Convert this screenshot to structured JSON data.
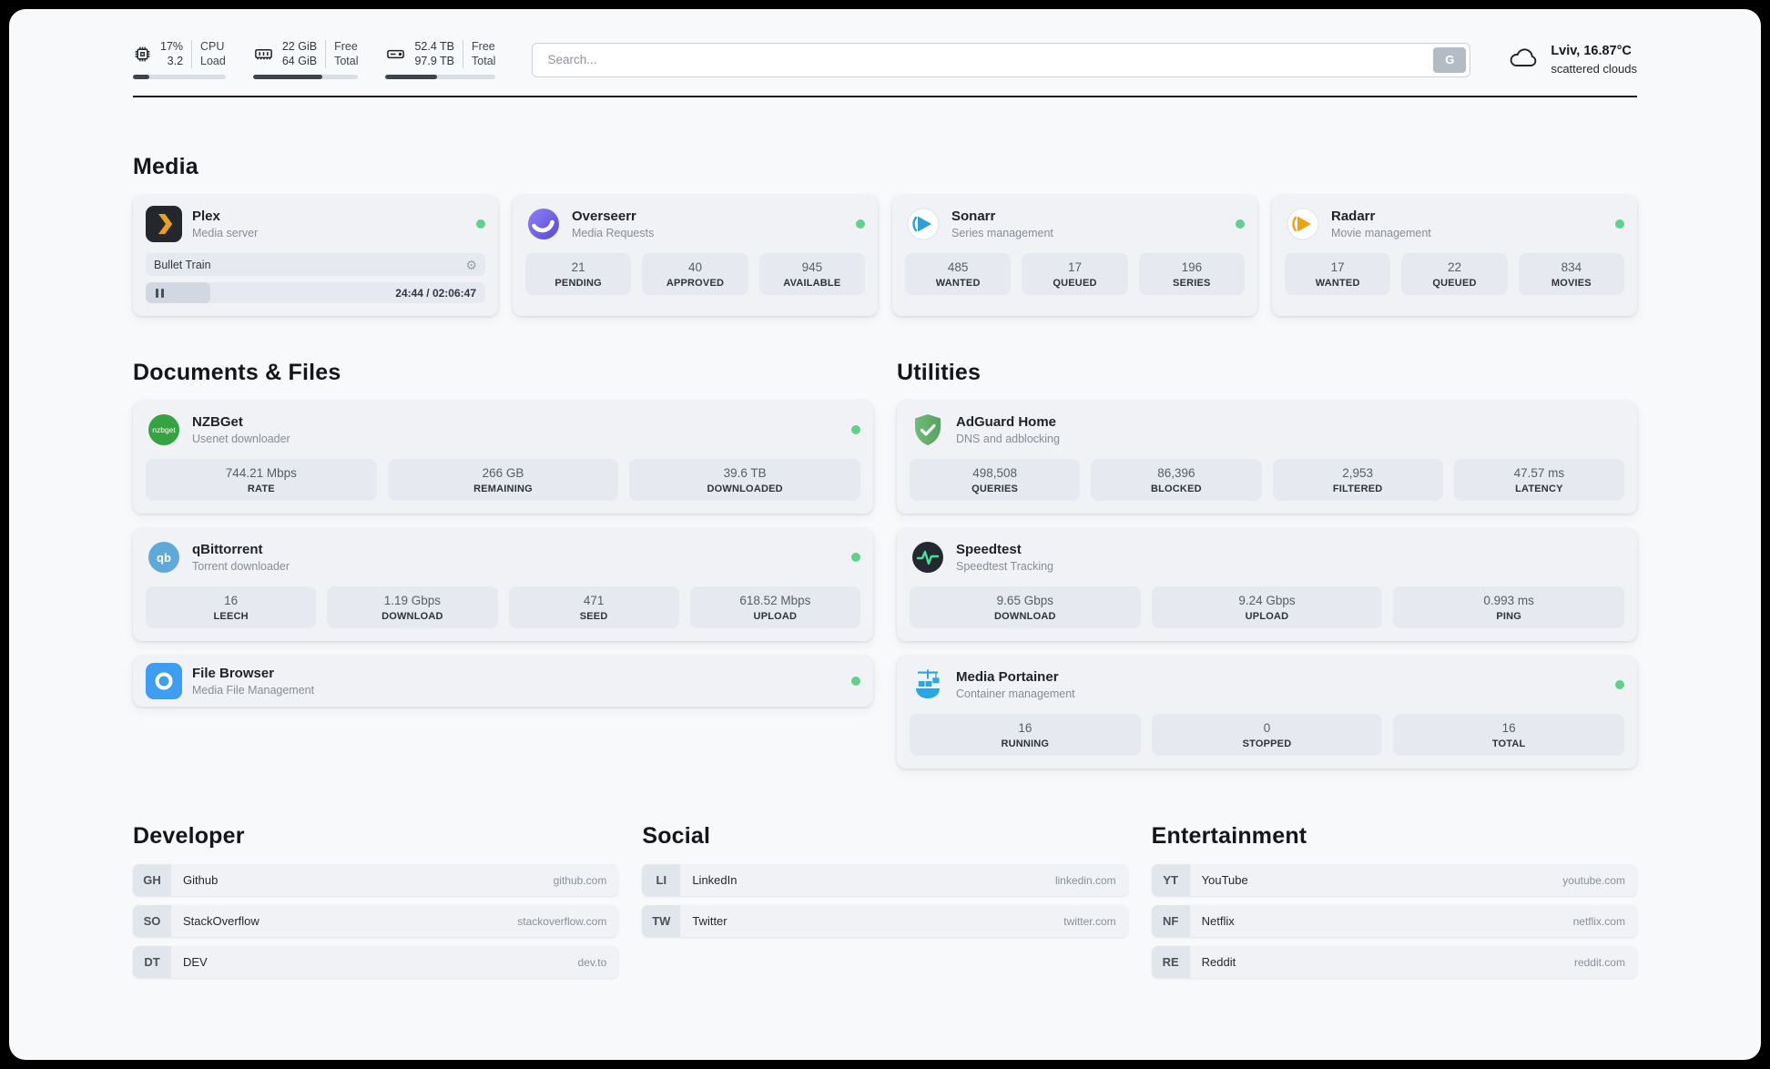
{
  "header": {
    "cpu": {
      "value1": "17%",
      "value2": "3.2",
      "label1": "CPU",
      "label2": "Load",
      "bar_percent": 18
    },
    "ram": {
      "value1": "22 GiB",
      "value2": "64 GiB",
      "label1": "Free",
      "label2": "Total",
      "bar_percent": 66
    },
    "disk": {
      "value1": "52.4 TB",
      "value2": "97.9 TB",
      "label1": "Free",
      "label2": "Total",
      "bar_percent": 47
    },
    "search": {
      "placeholder": "Search...",
      "button_label": "G"
    },
    "weather": {
      "location": "Lviv, 16.87°C",
      "condition": "scattered clouds"
    }
  },
  "media": {
    "title": "Media",
    "plex": {
      "name": "Plex",
      "desc": "Media server",
      "now_playing": {
        "title": "Bullet Train",
        "time": "24:44 / 02:06:47",
        "progress_percent": 19
      }
    },
    "overseerr": {
      "name": "Overseerr",
      "desc": "Media Requests",
      "stats": [
        {
          "value": "21",
          "label": "PENDING"
        },
        {
          "value": "40",
          "label": "APPROVED"
        },
        {
          "value": "945",
          "label": "AVAILABLE"
        }
      ]
    },
    "sonarr": {
      "name": "Sonarr",
      "desc": "Series management",
      "stats": [
        {
          "value": "485",
          "label": "WANTED"
        },
        {
          "value": "17",
          "label": "QUEUED"
        },
        {
          "value": "196",
          "label": "SERIES"
        }
      ]
    },
    "radarr": {
      "name": "Radarr",
      "desc": "Movie management",
      "stats": [
        {
          "value": "17",
          "label": "WANTED"
        },
        {
          "value": "22",
          "label": "QUEUED"
        },
        {
          "value": "834",
          "label": "MOVIES"
        }
      ]
    }
  },
  "documents": {
    "title": "Documents & Files",
    "nzbget": {
      "name": "NZBGet",
      "desc": "Usenet downloader",
      "icon_text": "nzbget",
      "stats": [
        {
          "value": "744.21 Mbps",
          "label": "RATE"
        },
        {
          "value": "266 GB",
          "label": "REMAINING"
        },
        {
          "value": "39.6 TB",
          "label": "DOWNLOADED"
        }
      ]
    },
    "qbittorrent": {
      "name": "qBittorrent",
      "desc": "Torrent downloader",
      "icon_text": "qb",
      "stats": [
        {
          "value": "16",
          "label": "LEECH"
        },
        {
          "value": "1.19 Gbps",
          "label": "DOWNLOAD"
        },
        {
          "value": "471",
          "label": "SEED"
        },
        {
          "value": "618.52 Mbps",
          "label": "UPLOAD"
        }
      ]
    },
    "filebrowser": {
      "name": "File Browser",
      "desc": "Media File Management"
    }
  },
  "utilities": {
    "title": "Utilities",
    "adguard": {
      "name": "AdGuard Home",
      "desc": "DNS and adblocking",
      "stats": [
        {
          "value": "498,508",
          "label": "QUERIES"
        },
        {
          "value": "86,396",
          "label": "BLOCKED"
        },
        {
          "value": "2,953",
          "label": "FILTERED"
        },
        {
          "value": "47.57 ms",
          "label": "LATENCY"
        }
      ]
    },
    "speedtest": {
      "name": "Speedtest",
      "desc": "Speedtest Tracking",
      "stats": [
        {
          "value": "9.65 Gbps",
          "label": "DOWNLOAD"
        },
        {
          "value": "9.24 Gbps",
          "label": "UPLOAD"
        },
        {
          "value": "0.993 ms",
          "label": "PING"
        }
      ]
    },
    "portainer": {
      "name": "Media Portainer",
      "desc": "Container management",
      "stats": [
        {
          "value": "16",
          "label": "RUNNING"
        },
        {
          "value": "0",
          "label": "STOPPED"
        },
        {
          "value": "16",
          "label": "TOTAL"
        }
      ]
    }
  },
  "developer": {
    "title": "Developer",
    "links": [
      {
        "abbr": "GH",
        "name": "Github",
        "url": "github.com"
      },
      {
        "abbr": "SO",
        "name": "StackOverflow",
        "url": "stackoverflow.com"
      },
      {
        "abbr": "DT",
        "name": "DEV",
        "url": "dev.to"
      }
    ]
  },
  "social": {
    "title": "Social",
    "links": [
      {
        "abbr": "LI",
        "name": "LinkedIn",
        "url": "linkedin.com"
      },
      {
        "abbr": "TW",
        "name": "Twitter",
        "url": "twitter.com"
      }
    ]
  },
  "entertainment": {
    "title": "Entertainment",
    "links": [
      {
        "abbr": "YT",
        "name": "YouTube",
        "url": "youtube.com"
      },
      {
        "abbr": "NF",
        "name": "Netflix",
        "url": "netflix.com"
      },
      {
        "abbr": "RE",
        "name": "Reddit",
        "url": "reddit.com"
      }
    ]
  },
  "colors": {
    "status_online": "#5fd18c",
    "page_bg": "#f8f9fb",
    "card_bg": "#f0f2f6",
    "stat_bg": "#e6eaf0",
    "divider": "#191c1f"
  }
}
